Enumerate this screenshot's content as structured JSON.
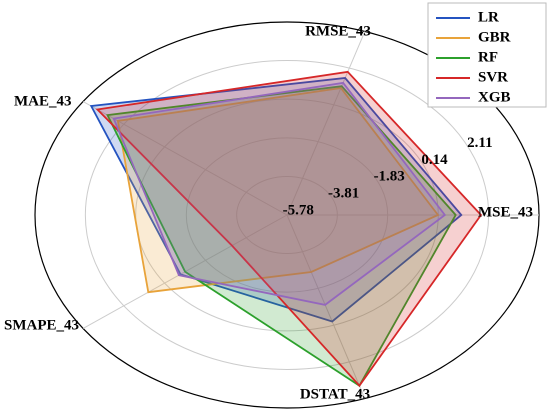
{
  "chart_data": {
    "type": "radar",
    "categories": [
      "MSE_43",
      "RMSE_43",
      "MAE_43",
      "SMAPE_43",
      "DSTAT_43"
    ],
    "rlim": [
      -7.75,
      2.11
    ],
    "rticks": [
      -5.78,
      -3.81,
      -1.83,
      0.14,
      2.11
    ],
    "legend": "upper right",
    "series": [
      {
        "name": "LR",
        "color": "#2453c0",
        "values": [
          -0.93,
          -0.39,
          1.72,
          -2.6,
          -2.03
        ]
      },
      {
        "name": "GBR",
        "color": "#e8a33a",
        "values": [
          -1.84,
          -0.93,
          0.43,
          -1.04,
          -4.69
        ]
      },
      {
        "name": "RF",
        "color": "#2ca02c",
        "values": [
          -1.15,
          -0.83,
          0.93,
          -2.82,
          1.42
        ]
      },
      {
        "name": "SVR",
        "color": "#d62728",
        "values": [
          -0.16,
          -0.06,
          1.42,
          -5.09,
          1.42
        ]
      },
      {
        "name": "XGB",
        "color": "#9467bd",
        "values": [
          -1.57,
          -0.65,
          0.63,
          -2.52,
          -2.92
        ]
      }
    ]
  }
}
